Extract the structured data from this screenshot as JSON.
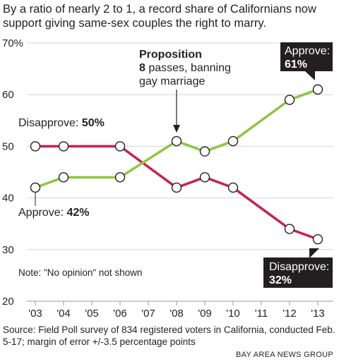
{
  "headline": "By a ratio of nearly 2 to 1, a record share of Californians now support giving same-sex couples the right to marry.",
  "source": "Source: Field Poll survey of 834 registered voters in California, conducted Feb. 5-17; margin of error +/-3.5 percentage points",
  "credit": "BAY AREA NEWS GROUP",
  "colors": {
    "approve": "#8cc63f",
    "disapprove": "#cc1f4f",
    "grid": "#d6d6d6",
    "text": "#231f20",
    "callout_bg": "#231f20",
    "callout_text": "#ffffff"
  },
  "chart_data": {
    "type": "line",
    "x": [
      "'03",
      "'04",
      "'05",
      "'06",
      "'07",
      "'08",
      "'09",
      "'10",
      "'11",
      "'12",
      "'13"
    ],
    "ylim": [
      20,
      70
    ],
    "yticks": [
      20,
      30,
      40,
      50,
      60,
      70
    ],
    "ytick_labels": [
      "20",
      "30",
      "40",
      "50",
      "60",
      "70%"
    ],
    "grid": true,
    "series": [
      {
        "name": "Approve",
        "color": "#8cc63f",
        "points": [
          [
            "'03",
            42
          ],
          [
            "'04",
            44
          ],
          [
            "'06",
            44
          ],
          [
            "'08",
            51
          ],
          [
            "'09",
            49
          ],
          [
            "'10",
            51
          ],
          [
            "'12",
            59
          ],
          [
            "'13",
            61
          ]
        ]
      },
      {
        "name": "Disapprove",
        "color": "#cc1f4f",
        "points": [
          [
            "'03",
            50
          ],
          [
            "'04",
            50
          ],
          [
            "'06",
            50
          ],
          [
            "'08",
            42
          ],
          [
            "'09",
            44
          ],
          [
            "'10",
            42
          ],
          [
            "'12",
            34
          ],
          [
            "'13",
            32
          ]
        ]
      }
    ],
    "annotations": {
      "disapprove_start": {
        "label": "Disapprove: ",
        "value": "50%"
      },
      "approve_start": {
        "label": "Approve: ",
        "value": "42%"
      },
      "approve_end": {
        "label": "Approve:",
        "value": "61%"
      },
      "disapprove_end": {
        "label": "Disapprove:",
        "value": "32%"
      },
      "proposition": {
        "bold": "Proposition",
        "bold2": "8",
        "line2": " passes, banning",
        "line3": "gay marriage"
      },
      "note": "Note: \"No opinion\" not shown"
    }
  }
}
